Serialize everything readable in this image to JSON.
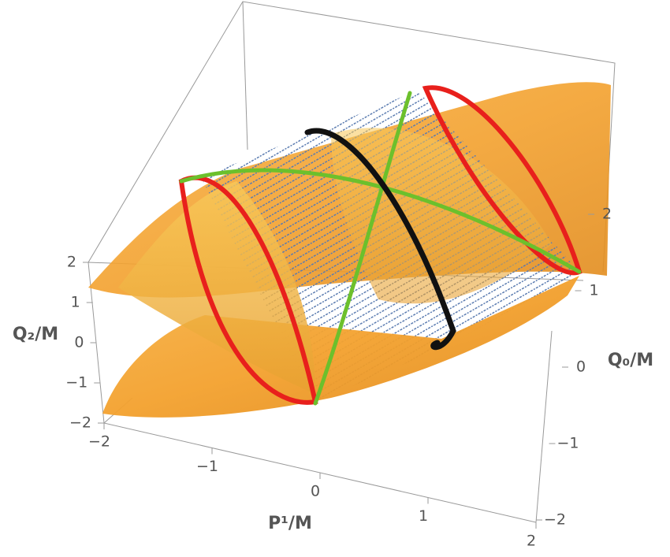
{
  "chart_data": {
    "type": "surface3d",
    "xlabel": "P¹/M",
    "ylabel": "Q₀/M",
    "zlabel": "Q₂/M",
    "xlim": [
      -2,
      2
    ],
    "ylim": [
      -2,
      2
    ],
    "zlim": [
      -2,
      2
    ],
    "xticks": [
      {
        "value": -2,
        "label": "−2"
      },
      {
        "value": -1,
        "label": "−1"
      },
      0,
      1,
      2
    ],
    "yticks": [
      {
        "value": -2,
        "label": "−2"
      },
      {
        "value": -1,
        "label": "−1"
      },
      0,
      1,
      2
    ],
    "zticks": [
      {
        "value": -2,
        "label": "−2"
      },
      {
        "value": -1,
        "label": "−1"
      },
      0,
      1,
      2
    ]
  }
}
